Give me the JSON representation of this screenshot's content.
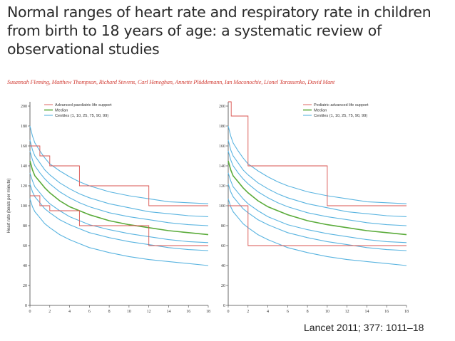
{
  "title": "Normal ranges of heart rate and respiratory rate in children from birth to 18 years of age: a systematic review of observational studies",
  "authors": "Susannah Fleming, Matthew Thompson, Richard Stevens, Carl Heneghan, Annette Plüddemann, Ian Maconochie, Lionel Tarassenko, David Mant",
  "citation": "Lancet 2011; 377: 1011–18",
  "colors": {
    "support": "#d9534f",
    "median": "#5aab3a",
    "centile": "#5ab4e0",
    "axis": "#444444"
  },
  "chart_data": [
    {
      "type": "line",
      "panel": "left",
      "ylabel": "Heart rate (beats per minute)",
      "xlabel": "",
      "xlim": [
        0,
        18
      ],
      "ylim": [
        0,
        200
      ],
      "xticks": [
        0,
        2,
        4,
        6,
        8,
        10,
        12,
        14,
        16,
        18
      ],
      "yticks": [
        0,
        20,
        40,
        60,
        80,
        100,
        120,
        140,
        160,
        180,
        200
      ],
      "legend": [
        "Advanced paediatric life support",
        "Median",
        "Centiles (1, 10, 25, 75, 90, 99)"
      ],
      "x": [
        0,
        0.25,
        0.5,
        1,
        1.5,
        2,
        3,
        4,
        5,
        6,
        8,
        10,
        12,
        14,
        16,
        18
      ],
      "series": [
        {
          "name": "99th centile",
          "role": "centile",
          "values": [
            180,
            170,
            163,
            155,
            148,
            142,
            135,
            129,
            124,
            120,
            114,
            110,
            107,
            104,
            103,
            102
          ]
        },
        {
          "name": "90th centile",
          "role": "centile",
          "values": [
            166,
            156,
            150,
            143,
            136,
            131,
            123,
            117,
            112,
            108,
            102,
            98,
            94,
            92,
            90,
            89
          ]
        },
        {
          "name": "75th centile",
          "role": "centile",
          "values": [
            155,
            146,
            140,
            133,
            127,
            122,
            114,
            108,
            103,
            99,
            93,
            89,
            86,
            83,
            81,
            80
          ]
        },
        {
          "name": "Median",
          "role": "median",
          "values": [
            145,
            136,
            130,
            124,
            118,
            113,
            105,
            99,
            95,
            91,
            85,
            81,
            78,
            75,
            73,
            71
          ]
        },
        {
          "name": "25th centile",
          "role": "centile",
          "values": [
            133,
            125,
            119,
            113,
            107,
            102,
            95,
            89,
            85,
            81,
            76,
            72,
            69,
            66,
            64,
            63
          ]
        },
        {
          "name": "10th centile",
          "role": "centile",
          "values": [
            122,
            114,
            109,
            103,
            97,
            93,
            86,
            81,
            77,
            73,
            68,
            64,
            61,
            58,
            56,
            55
          ]
        },
        {
          "name": "1st centile",
          "role": "centile",
          "values": [
            107,
            99,
            94,
            88,
            82,
            78,
            71,
            66,
            62,
            58,
            53,
            49,
            46,
            44,
            42,
            40
          ]
        }
      ],
      "support_bands": [
        {
          "name": "Advanced paediatric life support (upper)",
          "points": [
            [
              0,
              160
            ],
            [
              1,
              160
            ],
            [
              1,
              150
            ],
            [
              2,
              150
            ],
            [
              2,
              140
            ],
            [
              5,
              140
            ],
            [
              5,
              120
            ],
            [
              12,
              120
            ],
            [
              12,
              100
            ],
            [
              18,
              100
            ]
          ]
        },
        {
          "name": "Advanced paediatric life support (lower)",
          "points": [
            [
              0,
              110
            ],
            [
              1,
              110
            ],
            [
              1,
              100
            ],
            [
              2,
              100
            ],
            [
              2,
              95
            ],
            [
              5,
              95
            ],
            [
              5,
              80
            ],
            [
              12,
              80
            ],
            [
              12,
              60
            ],
            [
              18,
              60
            ]
          ]
        }
      ]
    },
    {
      "type": "line",
      "panel": "right",
      "ylabel": "",
      "xlabel": "",
      "xlim": [
        0,
        18
      ],
      "ylim": [
        0,
        200
      ],
      "xticks": [
        0,
        2,
        4,
        6,
        8,
        10,
        12,
        14,
        16,
        18
      ],
      "yticks": [
        0,
        20,
        40,
        60,
        80,
        100,
        120,
        140,
        160,
        180,
        200
      ],
      "legend": [
        "Pediatric advanced life support",
        "Median",
        "Centiles (1, 10, 25, 75, 90, 99)"
      ],
      "x": [
        0,
        0.25,
        0.5,
        1,
        1.5,
        2,
        3,
        4,
        5,
        6,
        8,
        10,
        12,
        14,
        16,
        18
      ],
      "series": [
        {
          "name": "99th centile",
          "role": "centile",
          "values": [
            180,
            170,
            163,
            155,
            148,
            142,
            135,
            129,
            124,
            120,
            114,
            110,
            107,
            104,
            103,
            102
          ]
        },
        {
          "name": "90th centile",
          "role": "centile",
          "values": [
            166,
            156,
            150,
            143,
            136,
            131,
            123,
            117,
            112,
            108,
            102,
            98,
            94,
            92,
            90,
            89
          ]
        },
        {
          "name": "75th centile",
          "role": "centile",
          "values": [
            155,
            146,
            140,
            133,
            127,
            122,
            114,
            108,
            103,
            99,
            93,
            89,
            86,
            83,
            81,
            80
          ]
        },
        {
          "name": "Median",
          "role": "median",
          "values": [
            145,
            136,
            130,
            124,
            118,
            113,
            105,
            99,
            95,
            91,
            85,
            81,
            78,
            75,
            73,
            71
          ]
        },
        {
          "name": "25th centile",
          "role": "centile",
          "values": [
            133,
            125,
            119,
            113,
            107,
            102,
            95,
            89,
            85,
            81,
            76,
            72,
            69,
            66,
            64,
            63
          ]
        },
        {
          "name": "10th centile",
          "role": "centile",
          "values": [
            122,
            114,
            109,
            103,
            97,
            93,
            86,
            81,
            77,
            73,
            68,
            64,
            61,
            58,
            56,
            55
          ]
        },
        {
          "name": "1st centile",
          "role": "centile",
          "values": [
            107,
            99,
            94,
            88,
            82,
            78,
            71,
            66,
            62,
            58,
            53,
            49,
            46,
            44,
            42,
            40
          ]
        }
      ],
      "support_bands": [
        {
          "name": "Pediatric advanced life support (upper)",
          "points": [
            [
              0,
              205
            ],
            [
              0.3,
              205
            ],
            [
              0.3,
              190
            ],
            [
              2,
              190
            ],
            [
              2,
              140
            ],
            [
              10,
              140
            ],
            [
              10,
              100
            ],
            [
              18,
              100
            ]
          ]
        },
        {
          "name": "Pediatric advanced life support (lower)",
          "points": [
            [
              0,
              100
            ],
            [
              2,
              100
            ],
            [
              2,
              60
            ],
            [
              18,
              60
            ]
          ]
        }
      ]
    }
  ]
}
